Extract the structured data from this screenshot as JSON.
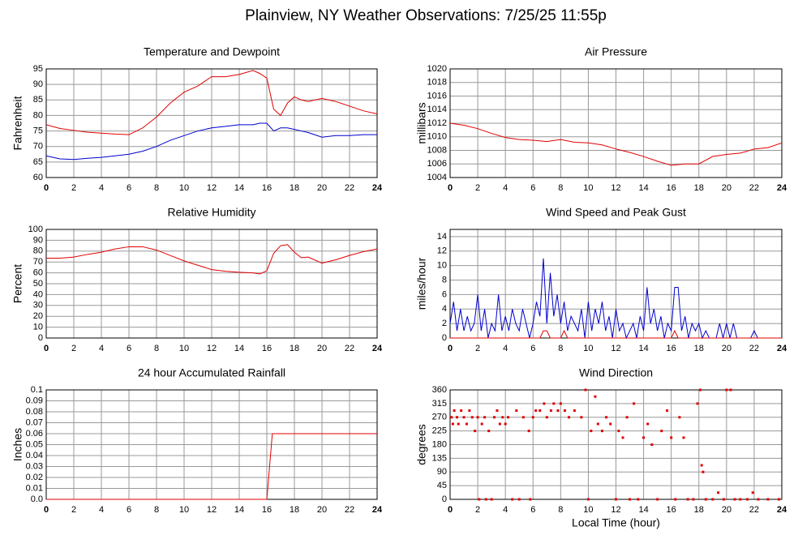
{
  "title": "Plainview, NY Weather Observations: 7/25/25 11:55p",
  "chart_data": [
    {
      "type": "line",
      "title": "Temperature and Dewpoint",
      "ylabel": "Fahrenheit",
      "x": [
        0,
        1,
        2,
        3,
        4,
        5,
        6,
        7,
        8,
        9,
        10,
        11,
        12,
        13,
        14,
        15,
        15.5,
        16,
        16.5,
        17,
        17.5,
        18,
        18.5,
        19,
        20,
        21,
        22,
        23,
        24
      ],
      "series": [
        {
          "color": "#e00000",
          "values": [
            77,
            75.8,
            75.2,
            74.6,
            74.3,
            74,
            73.8,
            76,
            79.5,
            84,
            87.5,
            89.5,
            92.5,
            92.5,
            93.2,
            94.5,
            93.5,
            92,
            82,
            80,
            84,
            86,
            85,
            84.5,
            85.5,
            84.5,
            83,
            81.5,
            80.5
          ]
        },
        {
          "color": "#0000d0",
          "values": [
            67,
            66,
            65.8,
            66.2,
            66.5,
            67,
            67.5,
            68.5,
            70,
            72,
            73.5,
            75,
            76,
            76.5,
            77,
            77,
            77.5,
            77.5,
            75,
            76,
            76,
            75.5,
            75,
            74.5,
            73,
            73.5,
            73.5,
            73.8,
            73.8
          ]
        }
      ],
      "xlim": [
        0,
        24
      ],
      "xticks": [
        0,
        2,
        4,
        6,
        8,
        10,
        12,
        14,
        16,
        18,
        20,
        22,
        24
      ],
      "ylim": [
        60,
        95
      ],
      "yticks": [
        60,
        65,
        70,
        75,
        80,
        85,
        90,
        95
      ],
      "grid": true
    },
    {
      "type": "line",
      "title": "Air Pressure",
      "ylabel": "millibars",
      "x": [
        0,
        1,
        2,
        3,
        4,
        5,
        6,
        7,
        8,
        9,
        10,
        11,
        12,
        13,
        14,
        15,
        16,
        17,
        18,
        19,
        20,
        21,
        22,
        23,
        24
      ],
      "series": [
        {
          "color": "#e00000",
          "values": [
            1012,
            1011.7,
            1011.2,
            1010.5,
            1009.9,
            1009.6,
            1009.5,
            1009.3,
            1009.6,
            1009.2,
            1009.1,
            1008.8,
            1008.2,
            1007.7,
            1007.1,
            1006.4,
            1005.8,
            1006,
            1006,
            1007.1,
            1007.4,
            1007.6,
            1008.2,
            1008.4,
            1009.1
          ]
        }
      ],
      "xlim": [
        0,
        24
      ],
      "xticks": [
        0,
        2,
        4,
        6,
        8,
        10,
        12,
        14,
        16,
        18,
        20,
        22,
        24
      ],
      "ylim": [
        1004,
        1020
      ],
      "yticks": [
        1004,
        1006,
        1008,
        1010,
        1012,
        1014,
        1016,
        1018,
        1020
      ],
      "grid": true
    },
    {
      "type": "line",
      "title": "Relative Humidity",
      "ylabel": "Percent",
      "x": [
        0,
        1,
        2,
        3,
        4,
        5,
        6,
        7,
        8,
        9,
        10,
        11,
        12,
        13,
        14,
        15,
        15.5,
        16,
        16.5,
        17,
        17.5,
        18,
        18.5,
        19,
        20,
        21,
        22,
        23,
        24
      ],
      "series": [
        {
          "color": "#e00000",
          "values": [
            73.5,
            73.5,
            74.5,
            77,
            79,
            82,
            84,
            84,
            81,
            76,
            71,
            67,
            63,
            61.5,
            60.5,
            60,
            59,
            62,
            78,
            85,
            86,
            79,
            74,
            74.5,
            69,
            72,
            76,
            79.5,
            82
          ]
        }
      ],
      "xlim": [
        0,
        24
      ],
      "xticks": [
        0,
        2,
        4,
        6,
        8,
        10,
        12,
        14,
        16,
        18,
        20,
        22,
        24
      ],
      "ylim": [
        0,
        100
      ],
      "yticks": [
        0,
        10,
        20,
        30,
        40,
        50,
        60,
        70,
        80,
        90,
        100
      ],
      "grid": true
    },
    {
      "type": "line",
      "title": "Wind Speed and Peak Gust",
      "ylabel": "miles/hour",
      "x": [
        0,
        0.25,
        0.5,
        0.75,
        1,
        1.25,
        1.5,
        1.75,
        2,
        2.25,
        2.5,
        2.75,
        3,
        3.25,
        3.5,
        3.75,
        4,
        4.25,
        4.5,
        4.75,
        5,
        5.25,
        5.5,
        5.75,
        6,
        6.25,
        6.5,
        6.75,
        7,
        7.25,
        7.5,
        7.75,
        8,
        8.25,
        8.5,
        8.75,
        9,
        9.25,
        9.5,
        9.75,
        10,
        10.25,
        10.5,
        10.75,
        11,
        11.25,
        11.5,
        11.75,
        12,
        12.25,
        12.5,
        12.75,
        13,
        13.25,
        13.5,
        13.75,
        14,
        14.25,
        14.5,
        14.75,
        15,
        15.25,
        15.5,
        15.75,
        16,
        16.25,
        16.5,
        16.75,
        17,
        17.25,
        17.5,
        17.75,
        18,
        18.25,
        18.5,
        18.75,
        19,
        19.25,
        19.5,
        19.75,
        20,
        20.25,
        20.5,
        20.75,
        21,
        21.25,
        21.5,
        21.75,
        22,
        22.25,
        22.5,
        22.75,
        23,
        23.25,
        23.5,
        23.75,
        24
      ],
      "series": [
        {
          "color": "#0000d0",
          "values": [
            2,
            5,
            1,
            4,
            1,
            3,
            1,
            2,
            6,
            1,
            4,
            0,
            2,
            1,
            6,
            1,
            3,
            1,
            4,
            2,
            1,
            4,
            2,
            0,
            2,
            5,
            3,
            11,
            2,
            9,
            3,
            6,
            2,
            5,
            1,
            3,
            2,
            1,
            4,
            0,
            5,
            1,
            4,
            2,
            5,
            1,
            3,
            0,
            4,
            1,
            2,
            0,
            1,
            2,
            0,
            3,
            1,
            7,
            2,
            4,
            1,
            3,
            0,
            2,
            1,
            7,
            7,
            1,
            3,
            0,
            2,
            1,
            2,
            0,
            1,
            0,
            0,
            0,
            2,
            0,
            2,
            0,
            2,
            0,
            0,
            0,
            0,
            0,
            1,
            0,
            0,
            0,
            0,
            0,
            0,
            0,
            0
          ]
        },
        {
          "color": "#e00000",
          "values": [
            0,
            0,
            0,
            0,
            0,
            0,
            0,
            0,
            0,
            0,
            0,
            0,
            0,
            0,
            0,
            0,
            0,
            0,
            0,
            0,
            0,
            0,
            0,
            0,
            0,
            0,
            0,
            1,
            1,
            0,
            0,
            0,
            0,
            1,
            0,
            0,
            0,
            0,
            0,
            0,
            0,
            0,
            0,
            0,
            0,
            0,
            0,
            0,
            0,
            0,
            0,
            0,
            0,
            0,
            0,
            0,
            0,
            0,
            0,
            0,
            0,
            0,
            0,
            0,
            0,
            1,
            0,
            0,
            0,
            0,
            0,
            0,
            0,
            0,
            0,
            0,
            0,
            0,
            0,
            0,
            0,
            0,
            0,
            0,
            0,
            0,
            0,
            0,
            0,
            0,
            0,
            0,
            0,
            0,
            0,
            0,
            0
          ]
        }
      ],
      "xlim": [
        0,
        24
      ],
      "xticks": [
        0,
        2,
        4,
        6,
        8,
        10,
        12,
        14,
        16,
        18,
        20,
        22,
        24
      ],
      "ylim": [
        0,
        15
      ],
      "yticks": [
        0,
        2,
        4,
        6,
        8,
        10,
        12,
        14
      ],
      "grid": true
    },
    {
      "type": "line",
      "title": "24 hour Accumulated Rainfall",
      "ylabel": "Inches",
      "x": [
        0,
        16,
        16.2,
        16.4,
        24
      ],
      "series": [
        {
          "color": "#e00000",
          "values": [
            0,
            0,
            0.03,
            0.06,
            0.06
          ]
        }
      ],
      "xlim": [
        0,
        24
      ],
      "xticks": [
        0,
        2,
        4,
        6,
        8,
        10,
        12,
        14,
        16,
        18,
        20,
        22,
        24
      ],
      "ylim": [
        0,
        0.1
      ],
      "yticks": [
        {
          "value": 0,
          "label": "0.0"
        },
        0.01,
        0.02,
        0.03,
        0.04,
        0.05,
        0.06,
        0.07,
        0.08,
        0.09,
        0.1
      ],
      "grid": true
    },
    {
      "type": "scatter",
      "title": "Wind Direction",
      "ylabel": "degrees",
      "xlabel": "Local Time (hour)",
      "x": [
        0.1,
        0.2,
        0.3,
        0.5,
        0.6,
        0.8,
        1.0,
        1.2,
        1.4,
        1.6,
        1.8,
        2.0,
        2.1,
        2.3,
        2.5,
        2.6,
        2.8,
        3.0,
        3.2,
        3.4,
        3.6,
        3.8,
        4.0,
        4.2,
        4.5,
        4.8,
        5.0,
        5.3,
        5.7,
        5.8,
        6.0,
        6.2,
        6.5,
        6.8,
        7.0,
        7.3,
        7.5,
        7.8,
        8.0,
        8.3,
        8.6,
        9.0,
        9.5,
        9.8,
        10.0,
        10.2,
        10.5,
        10.7,
        11.0,
        11.3,
        11.6,
        12.0,
        12.2,
        12.5,
        12.8,
        13.0,
        13.3,
        13.6,
        14.0,
        14.3,
        14.6,
        15.0,
        15.3,
        15.7,
        16.0,
        16.3,
        16.6,
        16.9,
        17.2,
        17.6,
        17.9,
        18.1,
        18.2,
        18.3,
        18.5,
        19.0,
        19.4,
        19.8,
        20.0,
        20.3,
        20.6,
        21.0,
        21.5,
        21.9,
        22.3,
        23.0,
        23.8
      ],
      "series": [
        {
          "color": "#e00000",
          "values": [
            270,
            248,
            292,
            270,
            248,
            292,
            270,
            248,
            292,
            270,
            225,
            270,
            0,
            248,
            270,
            0,
            225,
            0,
            270,
            292,
            248,
            270,
            248,
            270,
            0,
            292,
            0,
            270,
            225,
            0,
            270,
            292,
            292,
            315,
            270,
            292,
            315,
            292,
            315,
            292,
            270,
            292,
            270,
            360,
            0,
            225,
            338,
            248,
            225,
            270,
            248,
            0,
            225,
            203,
            270,
            0,
            315,
            0,
            203,
            248,
            180,
            0,
            225,
            292,
            203,
            0,
            270,
            203,
            0,
            0,
            315,
            360,
            112,
            90,
            0,
            0,
            22,
            0,
            360,
            360,
            0,
            0,
            0,
            22,
            0,
            0,
            0
          ]
        }
      ],
      "xlim": [
        0,
        24
      ],
      "xticks": [
        0,
        2,
        4,
        6,
        8,
        10,
        12,
        14,
        16,
        18,
        20,
        22,
        24
      ],
      "ylim": [
        0,
        360
      ],
      "yticks": [
        0,
        45,
        90,
        135,
        180,
        225,
        270,
        315,
        360
      ],
      "grid": true
    }
  ]
}
